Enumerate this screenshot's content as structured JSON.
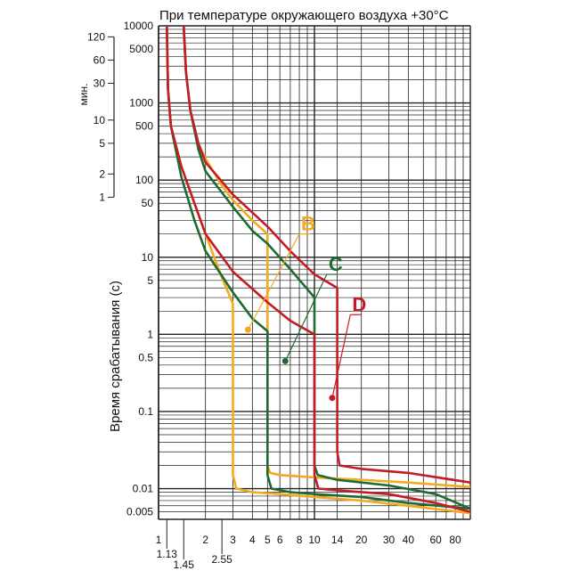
{
  "chart_data": {
    "type": "line",
    "title": "При температуре окружающего воздуха +30°C",
    "xlabel": "",
    "ylabel": "Время срабатывания (с)",
    "minutes_label": "мин.",
    "xscale": "log",
    "yscale": "log",
    "xlim": [
      1,
      100
    ],
    "ylim": [
      0.004,
      10000
    ],
    "grid": true,
    "x_ticks": [
      "1",
      "2",
      "3",
      "4",
      "5",
      "6",
      "8",
      "10",
      "14",
      "20",
      "30",
      "40",
      "60",
      "80"
    ],
    "x_ticks_secondary": [
      "1.13",
      "1.45",
      "2.55"
    ],
    "y_ticks": [
      "10000",
      "5000",
      "1000",
      "500",
      "100",
      "50",
      "10",
      "5",
      "1",
      "0.5",
      "0.1",
      "0.01",
      "0.005"
    ],
    "minute_ticks": [
      "120",
      "60",
      "30",
      "10",
      "5",
      "2",
      "1"
    ],
    "series": [
      {
        "name": "B",
        "color": "#f3aa1e",
        "upper": [
          [
            1.45,
            10000
          ],
          [
            1.5,
            2500
          ],
          [
            1.6,
            800
          ],
          [
            1.8,
            300
          ],
          [
            2,
            190
          ],
          [
            2.5,
            90
          ],
          [
            3,
            55
          ],
          [
            4,
            30
          ],
          [
            5,
            20
          ],
          [
            5,
            0.02
          ],
          [
            5.2,
            0.016
          ],
          [
            6,
            0.015
          ],
          [
            10,
            0.014
          ],
          [
            20,
            0.013
          ],
          [
            40,
            0.012
          ],
          [
            100,
            0.0105
          ]
        ],
        "lower": [
          [
            1.13,
            10000
          ],
          [
            1.15,
            1500
          ],
          [
            1.2,
            500
          ],
          [
            1.4,
            150
          ],
          [
            1.7,
            50
          ],
          [
            2,
            20
          ],
          [
            2.5,
            6
          ],
          [
            3,
            2.5
          ],
          [
            3,
            0.015
          ],
          [
            3.15,
            0.01
          ],
          [
            4,
            0.009
          ],
          [
            6,
            0.0085
          ],
          [
            10,
            0.0078
          ],
          [
            20,
            0.007
          ],
          [
            40,
            0.006
          ],
          [
            100,
            0.0048
          ]
        ]
      },
      {
        "name": "C",
        "color": "#1f6a32",
        "upper": [
          [
            1.45,
            10000
          ],
          [
            1.5,
            2500
          ],
          [
            1.6,
            800
          ],
          [
            1.8,
            250
          ],
          [
            2,
            130
          ],
          [
            3,
            45
          ],
          [
            4,
            22
          ],
          [
            5,
            15
          ],
          [
            7,
            7
          ],
          [
            10,
            3
          ],
          [
            10,
            0.02
          ],
          [
            10.5,
            0.015
          ],
          [
            14,
            0.013
          ],
          [
            30,
            0.011
          ],
          [
            60,
            0.0085
          ],
          [
            100,
            0.0055
          ]
        ],
        "lower": [
          [
            1.13,
            10000
          ],
          [
            1.15,
            1500
          ],
          [
            1.2,
            500
          ],
          [
            1.4,
            110
          ],
          [
            1.7,
            30
          ],
          [
            2,
            12
          ],
          [
            3,
            3.5
          ],
          [
            4,
            1.6
          ],
          [
            5,
            1.1
          ],
          [
            5,
            0.015
          ],
          [
            5.3,
            0.01
          ],
          [
            7,
            0.009
          ],
          [
            10,
            0.0085
          ],
          [
            20,
            0.0078
          ],
          [
            40,
            0.0065
          ],
          [
            100,
            0.0055
          ]
        ]
      },
      {
        "name": "D",
        "color": "#c41c25",
        "upper": [
          [
            1.45,
            10000
          ],
          [
            1.5,
            2500
          ],
          [
            1.6,
            800
          ],
          [
            1.8,
            300
          ],
          [
            2,
            170
          ],
          [
            3,
            65
          ],
          [
            5,
            25
          ],
          [
            7,
            12
          ],
          [
            10,
            6
          ],
          [
            14,
            4
          ],
          [
            14,
            0.03
          ],
          [
            14.5,
            0.02
          ],
          [
            20,
            0.018
          ],
          [
            40,
            0.016
          ],
          [
            100,
            0.012
          ]
        ],
        "lower": [
          [
            1.13,
            10000
          ],
          [
            1.15,
            1500
          ],
          [
            1.2,
            500
          ],
          [
            1.4,
            150
          ],
          [
            1.7,
            50
          ],
          [
            2,
            20
          ],
          [
            3,
            6.5
          ],
          [
            5,
            2.6
          ],
          [
            7,
            1.5
          ],
          [
            10,
            1
          ],
          [
            10,
            0.015
          ],
          [
            10.6,
            0.01
          ],
          [
            14,
            0.0095
          ],
          [
            30,
            0.0085
          ],
          [
            60,
            0.0065
          ],
          [
            100,
            0.005
          ]
        ]
      }
    ],
    "labels": [
      {
        "text": "B",
        "color": "#f3aa1e",
        "at": [
          3.75,
          1.15
        ],
        "to": [
          8,
          20
        ]
      },
      {
        "text": "C",
        "color": "#1f6a32",
        "at": [
          6.5,
          0.45
        ],
        "to": [
          12,
          6
        ]
      },
      {
        "text": "D",
        "color": "#c41c25",
        "at": [
          13,
          0.15
        ],
        "to": [
          17,
          1.8
        ]
      }
    ]
  }
}
